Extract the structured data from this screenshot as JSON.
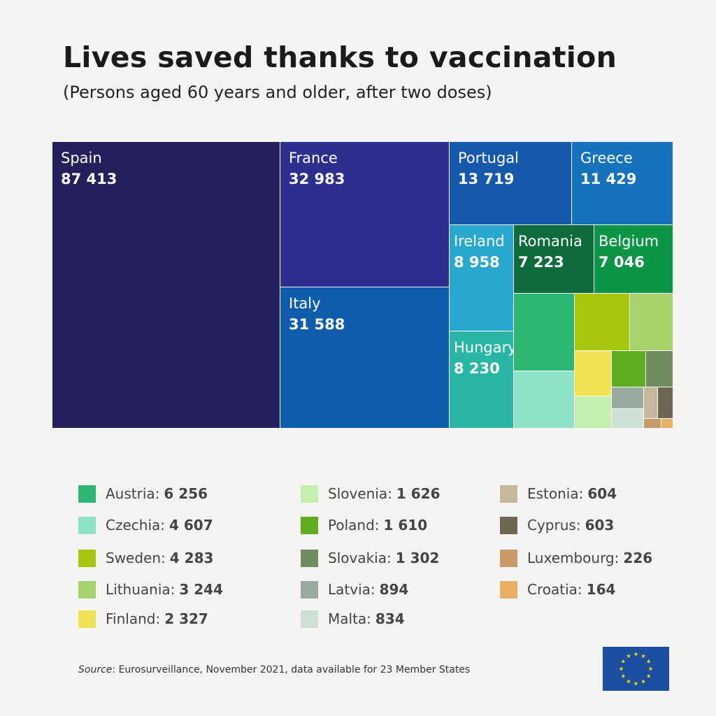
{
  "header": {
    "title": "Lives saved thanks to vaccination",
    "subtitle": "(Persons aged 60 years and older, after two doses)"
  },
  "chart_data": {
    "type": "treemap",
    "title": "Lives saved thanks to vaccination",
    "subtitle": "(Persons aged 60 years and older, after two doses)",
    "series": [
      {
        "name": "Spain",
        "display": "87 413",
        "value": 87413,
        "color": "#24205c",
        "labeled": true
      },
      {
        "name": "France",
        "display": "32 983",
        "value": 32983,
        "color": "#2d2f8f",
        "labeled": true
      },
      {
        "name": "Italy",
        "display": "31 588",
        "value": 31588,
        "color": "#0f5cad",
        "labeled": true
      },
      {
        "name": "Portugal",
        "display": "13 719",
        "value": 13719,
        "color": "#1658ac",
        "labeled": true
      },
      {
        "name": "Greece",
        "display": "11 429",
        "value": 11429,
        "color": "#1672bd",
        "labeled": true
      },
      {
        "name": "Ireland",
        "display": "8 958",
        "value": 8958,
        "color": "#2aa7cf",
        "labeled": true
      },
      {
        "name": "Romania",
        "display": "7 223",
        "value": 7223,
        "color": "#0e6b3c",
        "labeled": true
      },
      {
        "name": "Belgium",
        "display": "7 046",
        "value": 7046,
        "color": "#0c9546",
        "labeled": true
      },
      {
        "name": "Hungary",
        "display": "8 230",
        "value": 8230,
        "color": "#2ab6a4",
        "labeled": true
      },
      {
        "name": "Austria",
        "display": "6 256",
        "value": 6256,
        "color": "#2db573",
        "labeled": false
      },
      {
        "name": "Czechia",
        "display": "4 607",
        "value": 4607,
        "color": "#8de3c3",
        "labeled": false
      },
      {
        "name": "Sweden",
        "display": "4 283",
        "value": 4283,
        "color": "#a5c60c",
        "labeled": false
      },
      {
        "name": "Lithuania",
        "display": "3 244",
        "value": 3244,
        "color": "#a7d16b",
        "labeled": false
      },
      {
        "name": "Finland",
        "display": "2 327",
        "value": 2327,
        "color": "#f1e254",
        "labeled": false
      },
      {
        "name": "Slovenia",
        "display": "1 626",
        "value": 1626,
        "color": "#c4efaf",
        "labeled": false
      },
      {
        "name": "Poland",
        "display": "1 610",
        "value": 1610,
        "color": "#5fac1c",
        "labeled": false
      },
      {
        "name": "Slovakia",
        "display": "1 302",
        "value": 1302,
        "color": "#6f8c60",
        "labeled": false
      },
      {
        "name": "Latvia",
        "display": "894",
        "value": 894,
        "color": "#97ab9e",
        "labeled": false
      },
      {
        "name": "Malta",
        "display": "834",
        "value": 834,
        "color": "#cde0d4",
        "labeled": false
      },
      {
        "name": "Estonia",
        "display": "604",
        "value": 604,
        "color": "#c5b89c",
        "labeled": false
      },
      {
        "name": "Cyprus",
        "display": "603",
        "value": 603,
        "color": "#706555",
        "labeled": false
      },
      {
        "name": "Luxembourg",
        "display": "226",
        "value": 226,
        "color": "#c79a68",
        "labeled": false
      },
      {
        "name": "Croatia",
        "display": "164",
        "value": 164,
        "color": "#e9ae64",
        "labeled": false
      }
    ]
  },
  "legend": {
    "separator": ":",
    "columns": [
      [
        "Austria",
        "Czechia",
        "Sweden",
        "Lithuania",
        "Finland"
      ],
      [
        "Slovenia",
        "Poland",
        "Slovakia",
        "Latvia",
        "Malta"
      ],
      [
        "Estonia",
        "Cyprus",
        "Luxembourg",
        "Croatia"
      ]
    ]
  },
  "footer": {
    "source_label": "Source",
    "source_text": ": Eurosurveillance, November 2021, data available for 23 Member States"
  },
  "logo": {
    "name": "eu-flag-icon",
    "background": "#1d4fa0",
    "stars": "#ffdd00"
  }
}
